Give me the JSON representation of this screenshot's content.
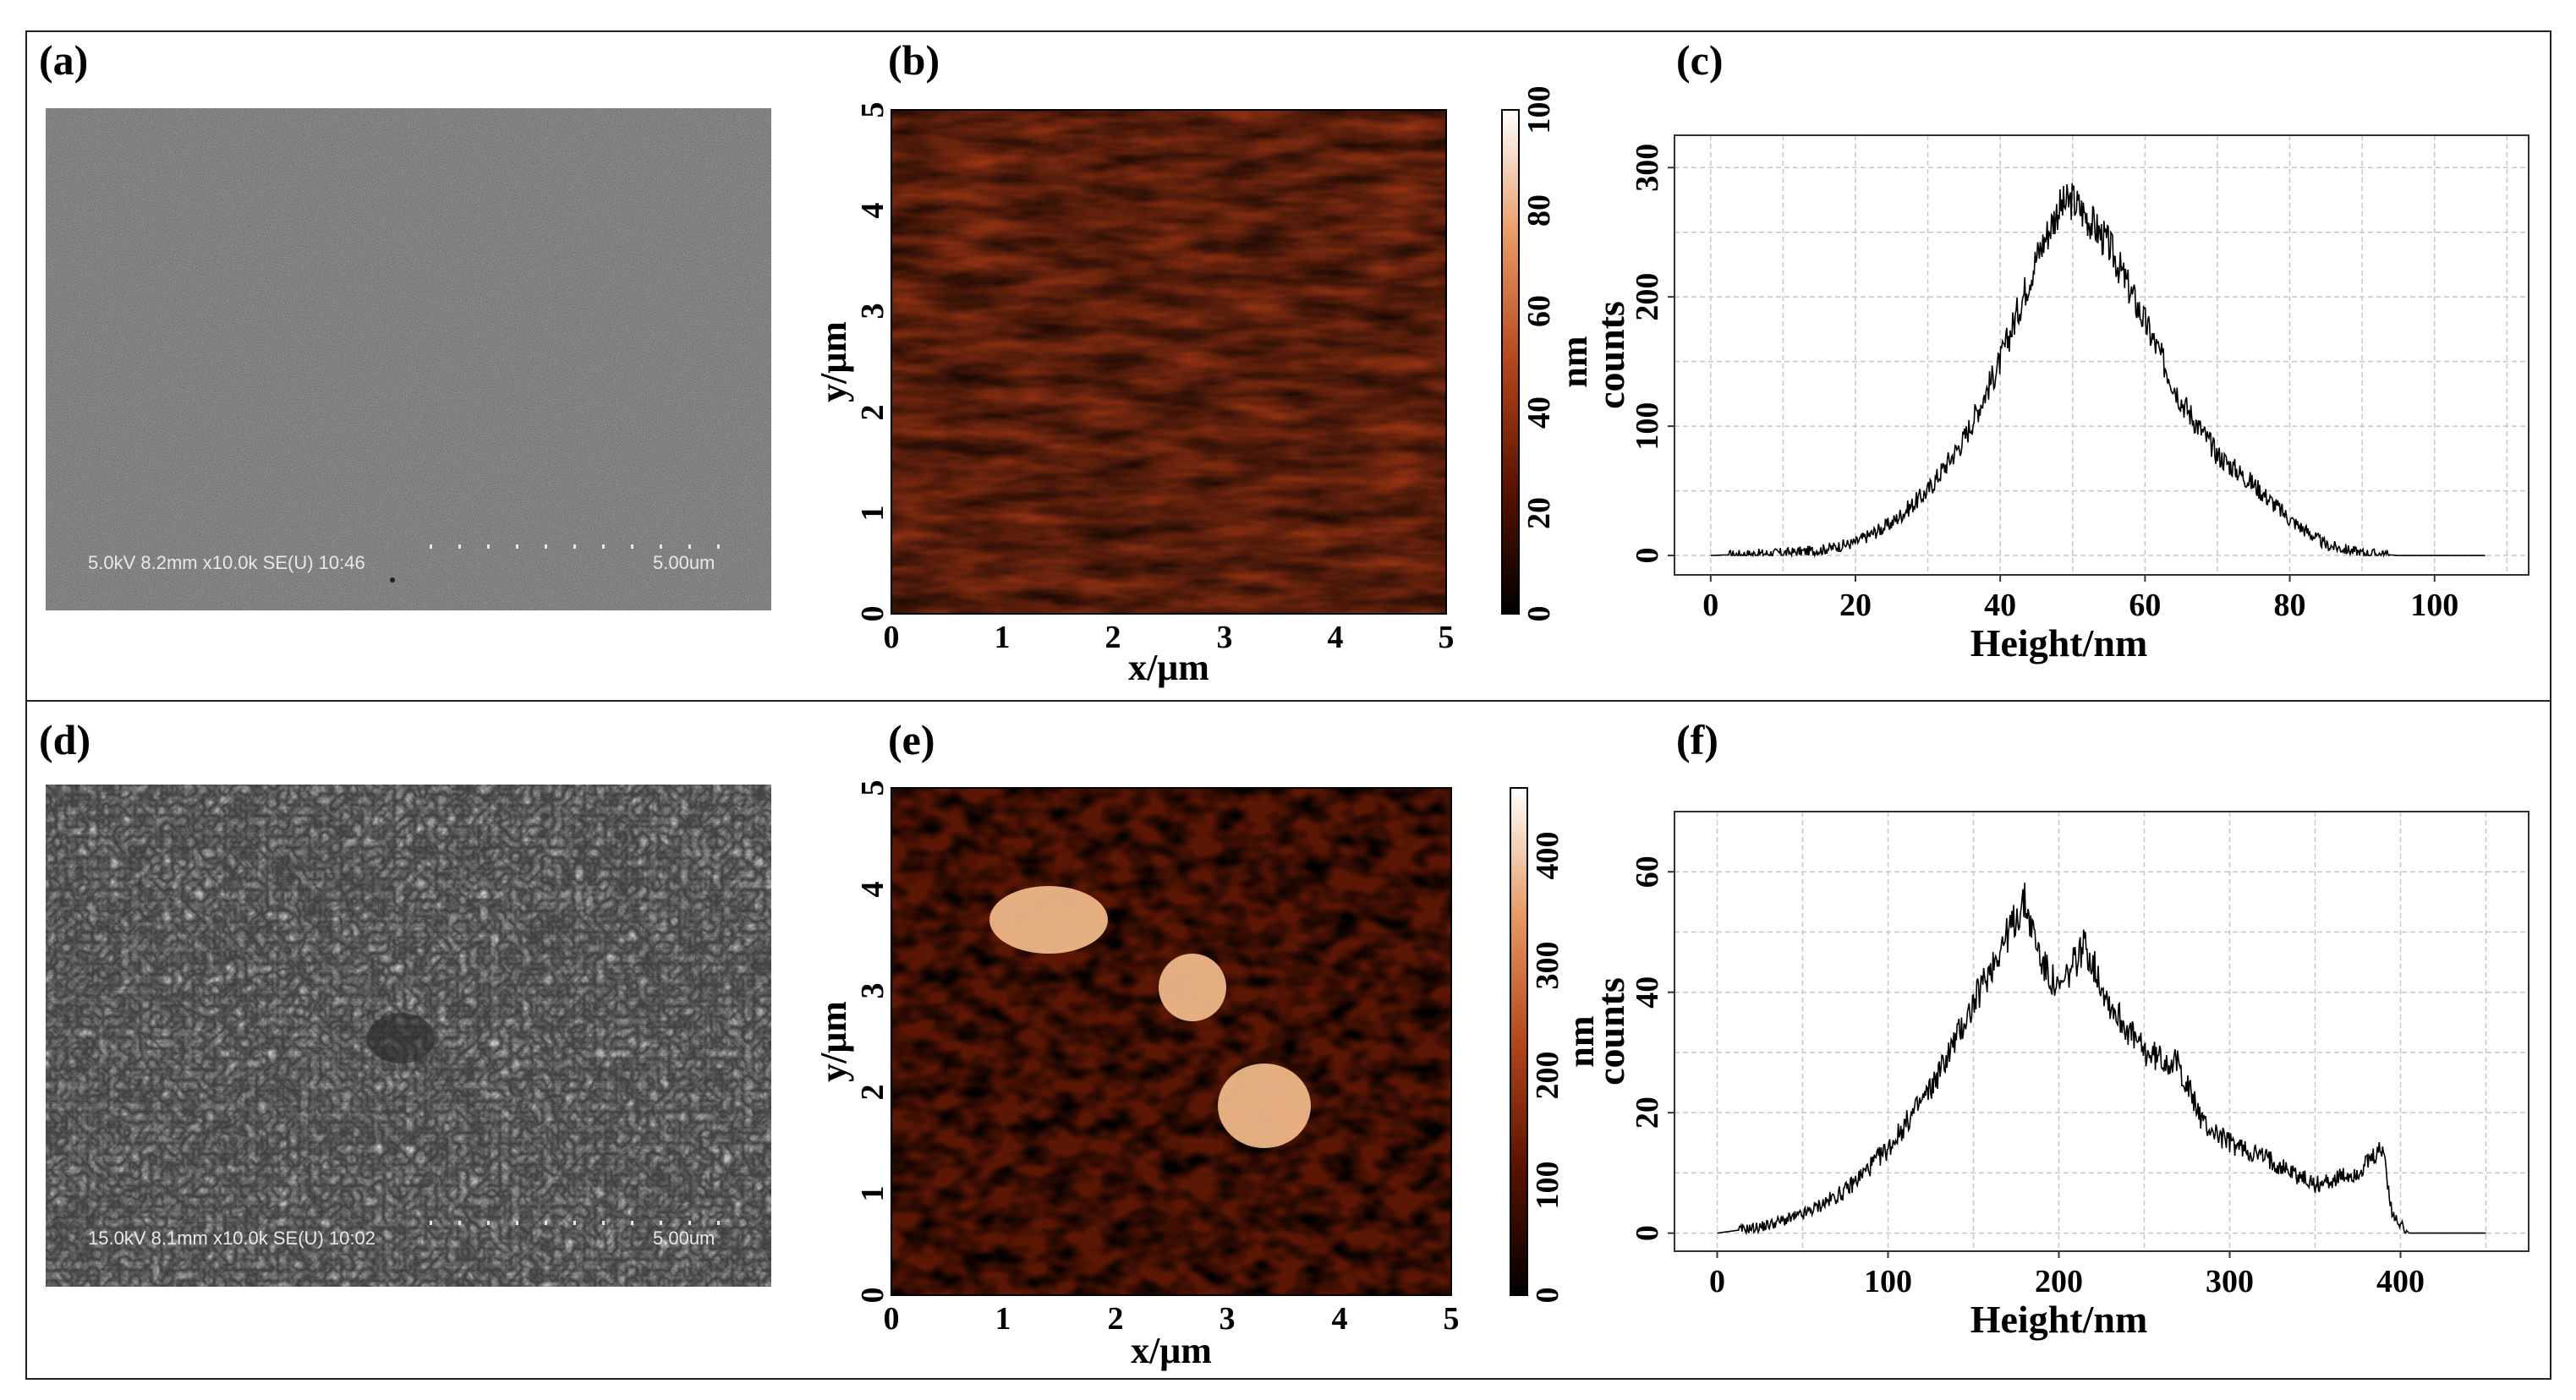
{
  "figure": {
    "panels": {
      "a": {
        "label": "(a)",
        "sem_info": "5.0kV 8.2mm x10.0k SE(U) 10:46",
        "scale_text": "5.00um"
      },
      "b": {
        "label": "(b)",
        "xlabel": "x/μm",
        "ylabel": "y/μm",
        "colorbar_label": "nm",
        "x_ticks": [
          "0",
          "1",
          "2",
          "3",
          "4",
          "5"
        ],
        "y_ticks": [
          "0",
          "1",
          "2",
          "3",
          "4",
          "5"
        ],
        "colorbar_ticks": [
          "0",
          "20",
          "40",
          "60",
          "80",
          "100"
        ]
      },
      "c": {
        "label": "(c)"
      },
      "d": {
        "label": "(d)",
        "sem_info": "15.0kV 8.1mm x10.0k SE(U) 10:02",
        "scale_text": "5.00um"
      },
      "e": {
        "label": "(e)",
        "xlabel": "x/μm",
        "ylabel": "y/μm",
        "colorbar_label": "nm",
        "x_ticks": [
          "0",
          "1",
          "2",
          "3",
          "4",
          "5"
        ],
        "y_ticks": [
          "0",
          "1",
          "2",
          "3",
          "4",
          "5"
        ],
        "colorbar_ticks": [
          "0",
          "100",
          "200",
          "300",
          "400"
        ]
      },
      "f": {
        "label": "(f)"
      }
    },
    "colors": {
      "afm_dark": "#3a0a00",
      "afm_mid": "#b4461c",
      "afm_light": "#fff4e0",
      "sem_gray": "#6e6e6e"
    }
  },
  "chart_data": [
    {
      "id": "c",
      "type": "line",
      "title": "",
      "xlabel": "Height/nm",
      "ylabel": "counts",
      "xlim": [
        -5,
        113
      ],
      "ylim": [
        -15,
        325
      ],
      "x_ticks": [
        0,
        20,
        40,
        60,
        80,
        100
      ],
      "y_ticks": [
        0,
        100,
        200,
        300
      ],
      "grid": true,
      "x": [
        0,
        5,
        10,
        15,
        20,
        25,
        30,
        35,
        40,
        45,
        48,
        50,
        52,
        55,
        60,
        65,
        70,
        75,
        80,
        85,
        90,
        95,
        100,
        107
      ],
      "values": [
        0,
        1,
        2,
        4,
        10,
        25,
        50,
        90,
        150,
        230,
        268,
        275,
        262,
        240,
        180,
        120,
        78,
        55,
        28,
        8,
        2,
        0,
        0,
        0
      ]
    },
    {
      "id": "f",
      "type": "line",
      "title": "",
      "xlabel": "Height/nm",
      "ylabel": "counts",
      "xlim": [
        -25,
        475
      ],
      "ylim": [
        -3,
        70
      ],
      "x_ticks": [
        0,
        100,
        200,
        300,
        400
      ],
      "y_ticks": [
        0,
        20,
        40,
        60
      ],
      "grid": true,
      "x": [
        0,
        25,
        50,
        75,
        100,
        125,
        150,
        165,
        180,
        190,
        200,
        215,
        230,
        250,
        270,
        285,
        300,
        325,
        350,
        375,
        390,
        395,
        405,
        420,
        450
      ],
      "values": [
        0,
        1,
        3,
        7,
        14,
        24,
        38,
        47,
        55,
        45,
        40,
        48,
        38,
        30,
        28,
        18,
        15,
        12,
        8,
        10,
        14,
        3,
        0,
        0,
        0
      ]
    }
  ]
}
